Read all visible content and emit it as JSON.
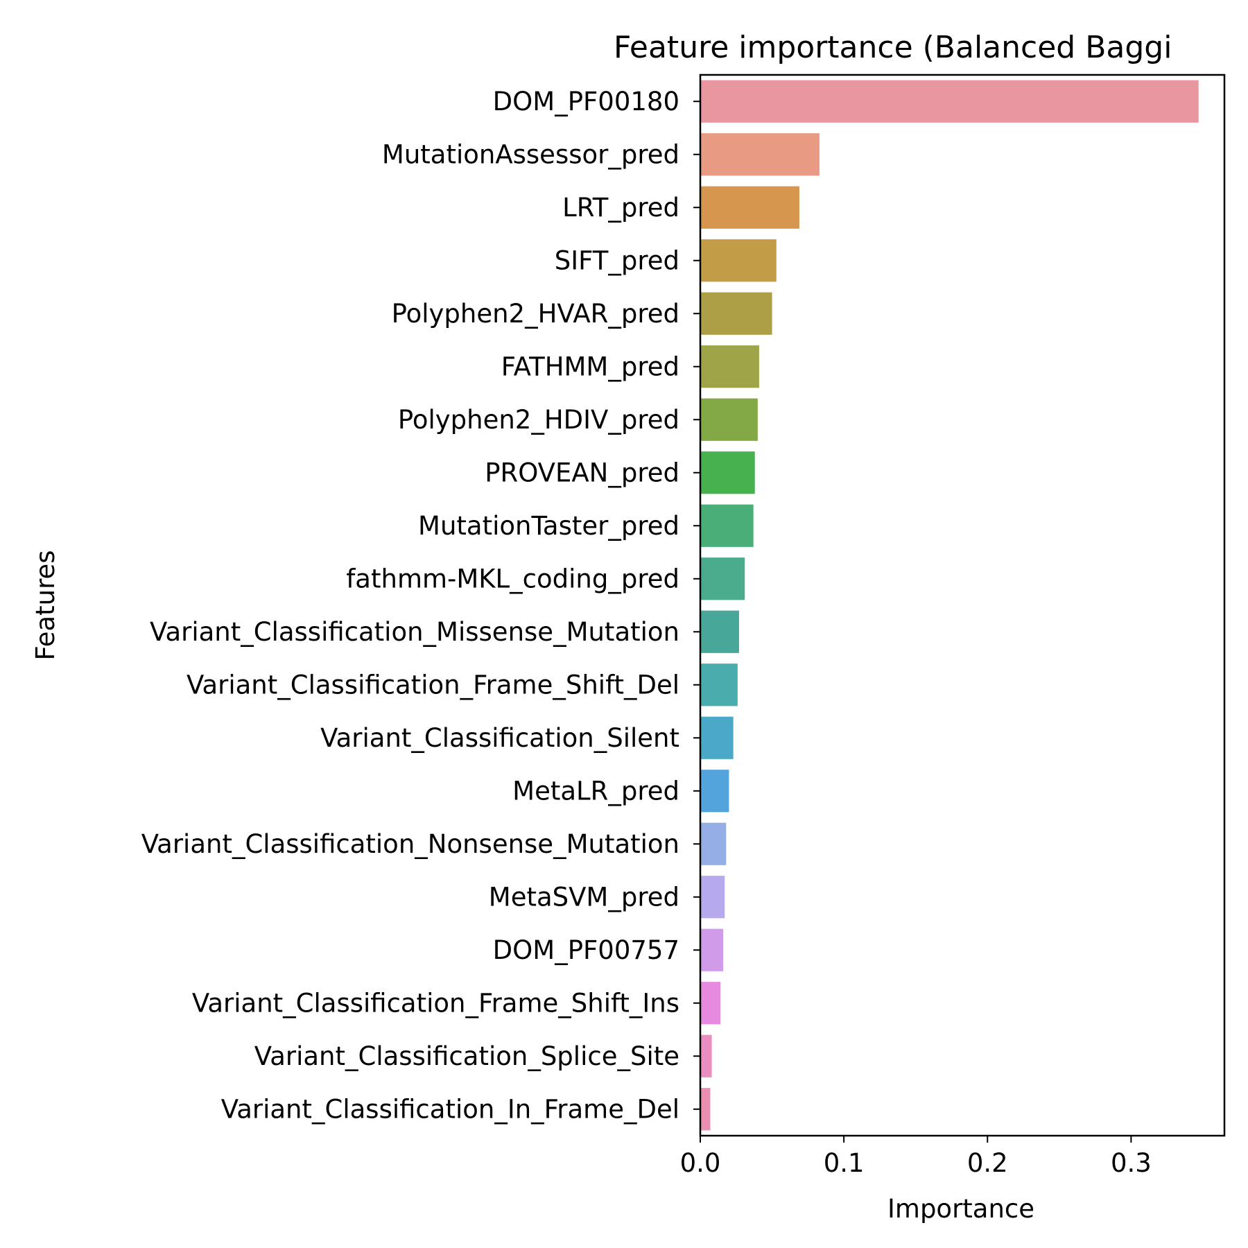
{
  "chart_data": {
    "type": "bar",
    "orientation": "horizontal",
    "title": "Feature importance (Balanced Baggi",
    "xlabel": "Importance",
    "ylabel": "Features",
    "xlim": [
      0,
      0.365
    ],
    "xticks": [
      0.0,
      0.1,
      0.2,
      0.3
    ],
    "xtick_labels": [
      "0.0",
      "0.1",
      "0.2",
      "0.3"
    ],
    "grid": false,
    "legend": "none",
    "categories": [
      "DOM_PF00180",
      "MutationAssessor_pred",
      "LRT_pred",
      "SIFT_pred",
      "Polyphen2_HVAR_pred",
      "FATHMM_pred",
      "Polyphen2_HDIV_pred",
      "PROVEAN_pred",
      "MutationTaster_pred",
      "fathmm-MKL_coding_pred",
      "Variant_Classification_Missense_Mutation",
      "Variant_Classification_Frame_Shift_Del",
      "Variant_Classification_Silent",
      "MetaLR_pred",
      "Variant_Classification_Nonsense_Mutation",
      "MetaSVM_pred",
      "DOM_PF00757",
      "Variant_Classification_Frame_Shift_Ins",
      "Variant_Classification_Splice_Site",
      "Variant_Classification_In_Frame_Del"
    ],
    "values": [
      0.347,
      0.083,
      0.069,
      0.053,
      0.05,
      0.041,
      0.04,
      0.038,
      0.037,
      0.031,
      0.027,
      0.026,
      0.023,
      0.02,
      0.018,
      0.017,
      0.016,
      0.014,
      0.008,
      0.007
    ],
    "colors": [
      "#e8969f",
      "#e89a83",
      "#d6964d",
      "#c29c47",
      "#ad9f46",
      "#9ea548",
      "#83a947",
      "#47b14e",
      "#49ae77",
      "#4aab8d",
      "#47a89a",
      "#49acad",
      "#4aa9c6",
      "#53a4dc",
      "#95aee6",
      "#b6a9ec",
      "#d09be8",
      "#e68ae0",
      "#ea8dc1",
      "#ea8fb1"
    ]
  }
}
